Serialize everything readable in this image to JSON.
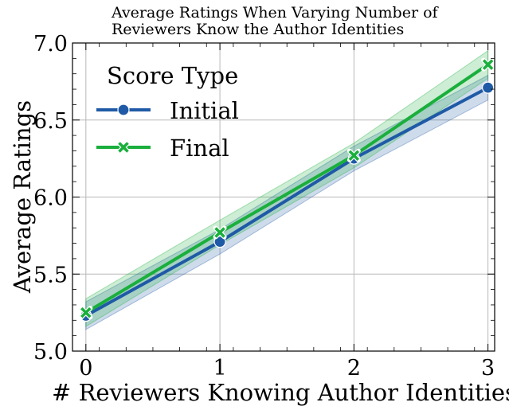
{
  "chart_data": {
    "type": "line",
    "title": [
      "Average Ratings When Varying Number of",
      "Reviewers Know the Author Identities"
    ],
    "xlabel": "# Reviewers Knowing Author Identities",
    "ylabel": "Average Ratings",
    "x": [
      0,
      1,
      2,
      3
    ],
    "xlim": [
      -0.1,
      3.05
    ],
    "ylim": [
      5.0,
      7.0
    ],
    "xticks": [
      0,
      1,
      2,
      3
    ],
    "yticks": [
      5.0,
      5.5,
      6.0,
      6.5,
      7.0
    ],
    "ytick_labels": [
      "5.0",
      "5.5",
      "6.0",
      "6.5",
      "7.0"
    ],
    "grid": true,
    "legend": {
      "title": "Score Type",
      "placement": "top-left"
    },
    "series": [
      {
        "name": "Initial",
        "color": "#1f5aa6",
        "marker": "circle",
        "values": [
          5.23,
          5.71,
          6.25,
          6.71
        ],
        "ci_low": [
          5.14,
          5.63,
          6.17,
          6.63
        ],
        "ci_high": [
          5.32,
          5.79,
          6.33,
          6.79
        ]
      },
      {
        "name": "Final",
        "color": "#1aaf3c",
        "marker": "x",
        "values": [
          5.25,
          5.77,
          6.27,
          6.86
        ],
        "ci_low": [
          5.16,
          5.69,
          6.19,
          6.77
        ],
        "ci_high": [
          5.34,
          5.85,
          6.35,
          6.95
        ]
      }
    ]
  }
}
